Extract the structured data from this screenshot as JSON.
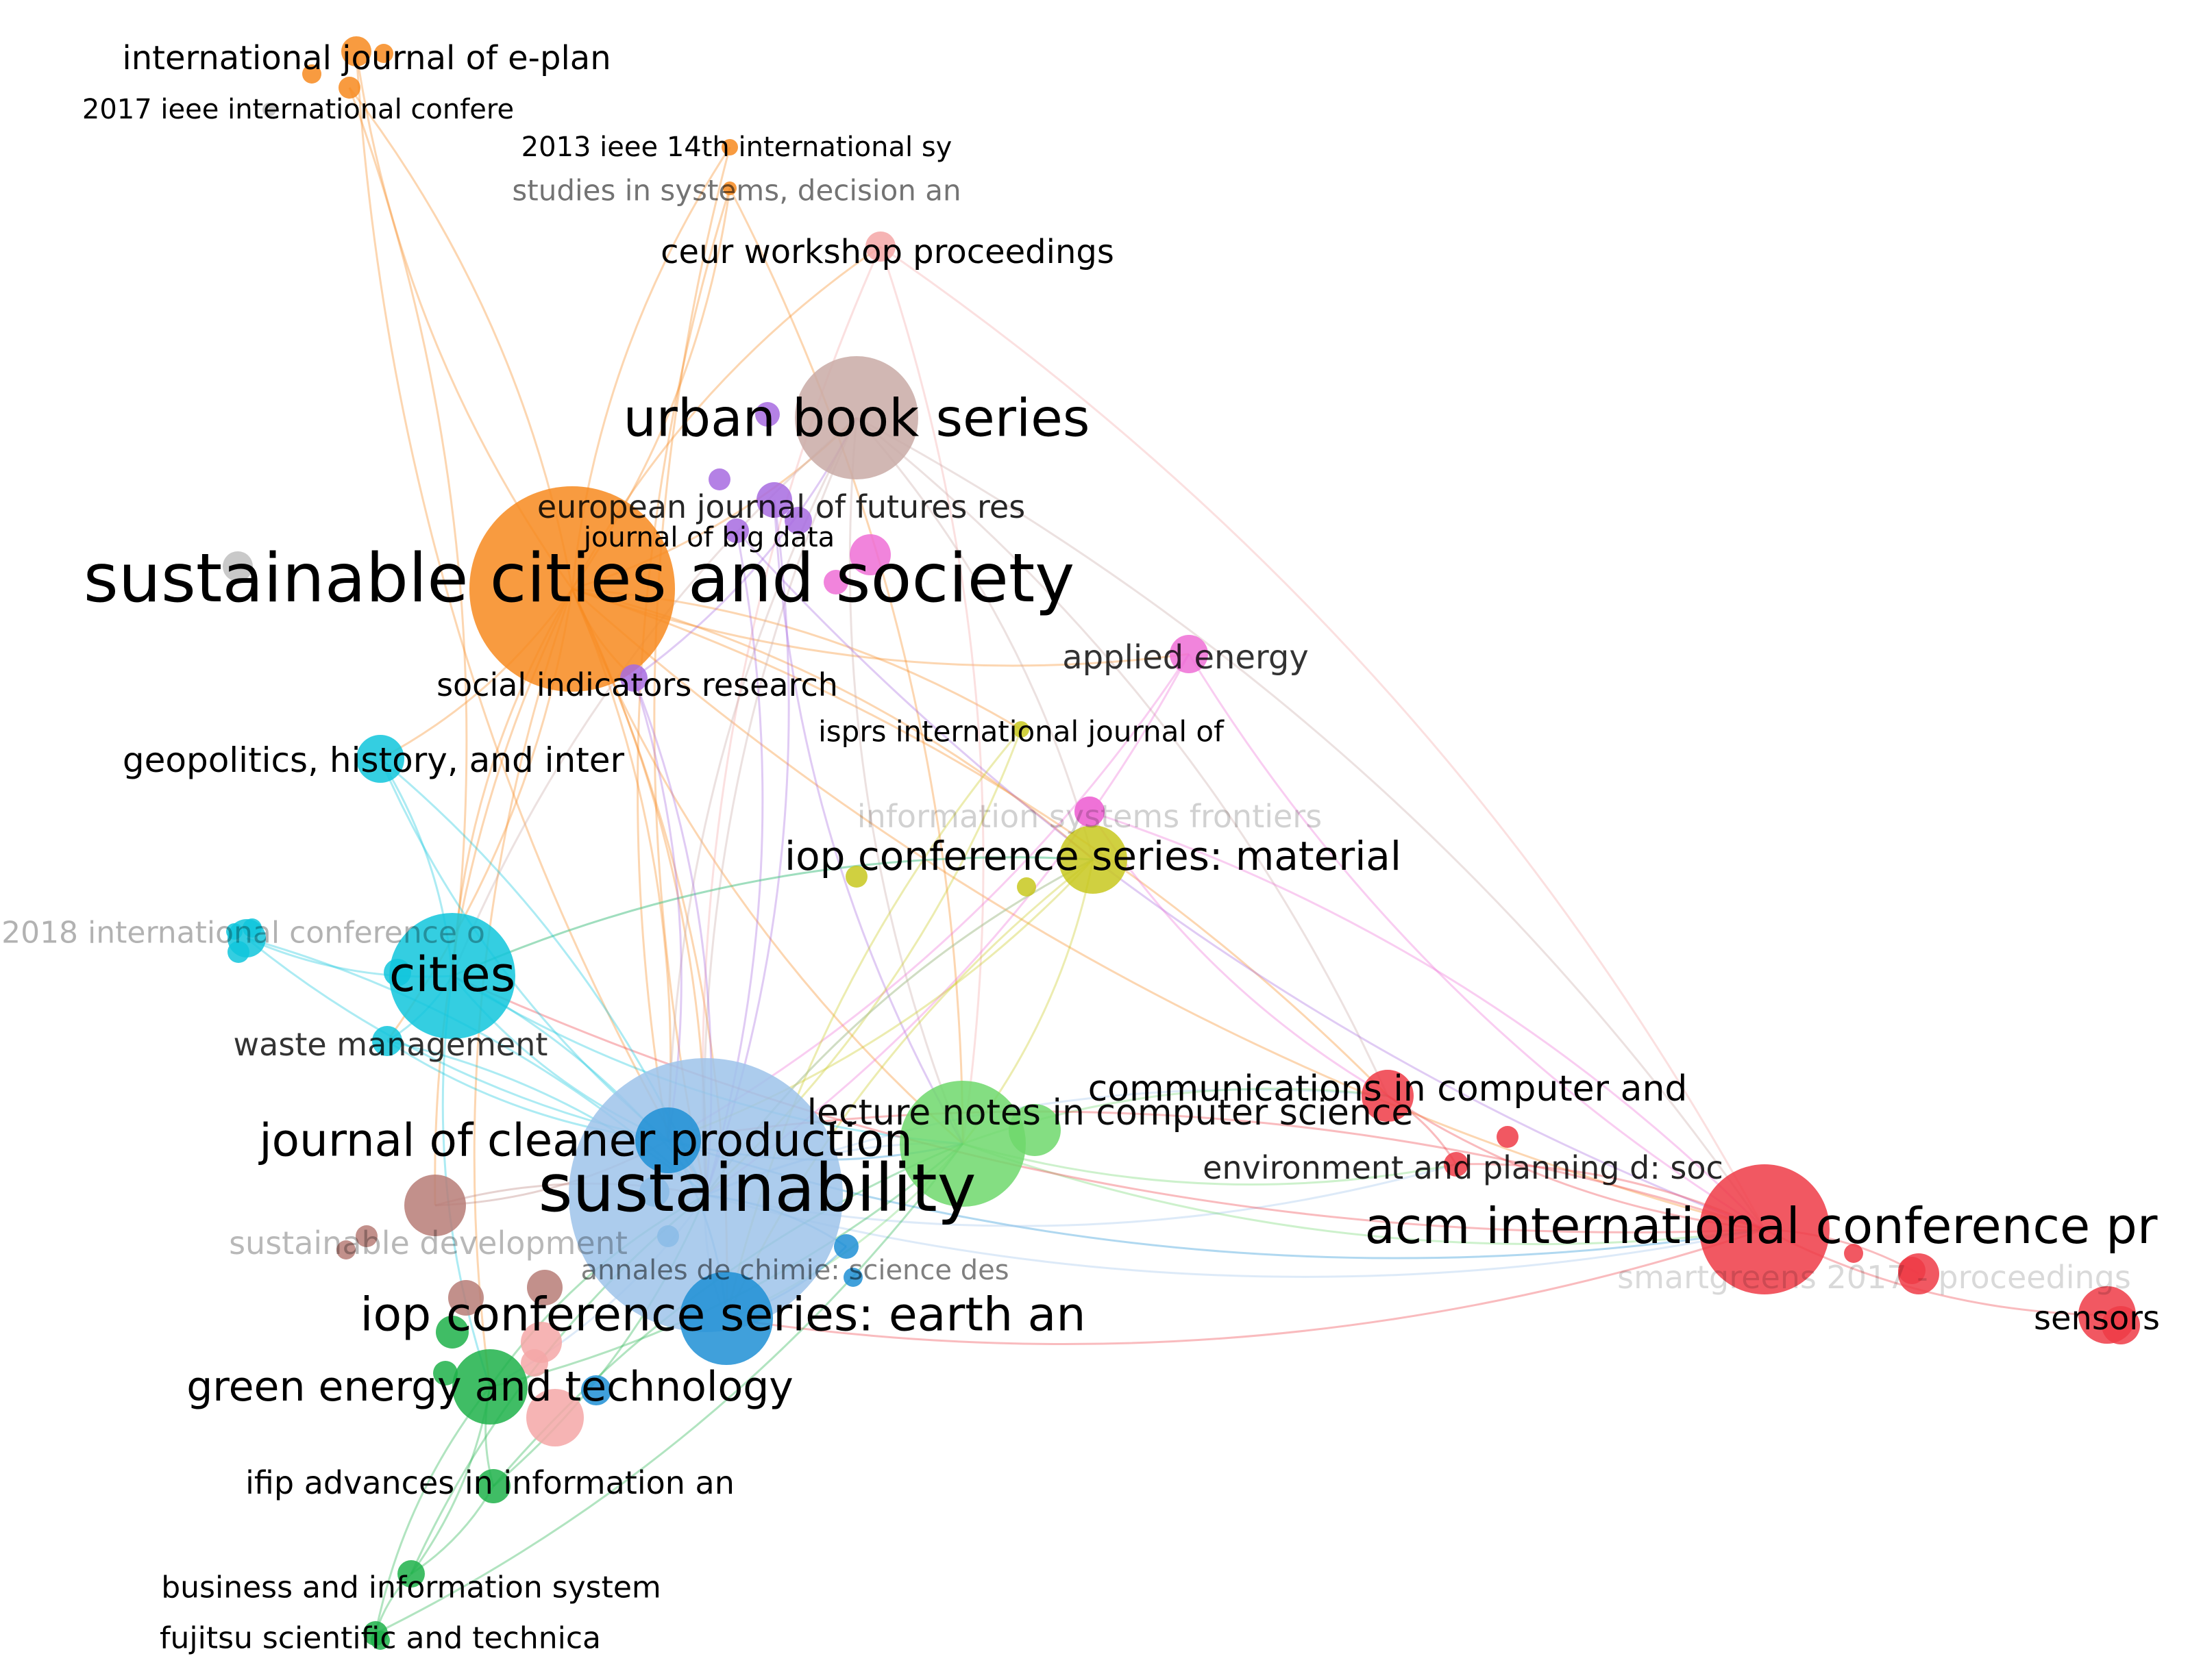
{
  "diagram": {
    "type": "bibliometric-source-network",
    "clusters": {
      "orange": "#f7891f",
      "red": "#ef3b46",
      "green": "#1fb24a",
      "light_green": "#6fd86c",
      "blue": "#1e8fd5",
      "light_blue": "#9ec3ea",
      "cyan": "#10c6dc",
      "yellow": "#c8c81e",
      "purple": "#a76be0",
      "pink": "#ef6fd6",
      "light_pink": "#f4a7a7",
      "brown": "#b77d77",
      "mauve": "#c9aaa6",
      "grey": "#c0c0c0"
    },
    "nodes": [
      {
        "id": "scs",
        "label": "sustainable cities and society",
        "cluster": "orange"
      },
      {
        "id": "ije",
        "label": "international journal of e-plan",
        "cluster": "orange"
      },
      {
        "id": "ieee17",
        "label": "2017 ieee international confere",
        "cluster": "orange"
      },
      {
        "id": "ieee13",
        "label": "2013 ieee 14th international sy",
        "cluster": "orange"
      },
      {
        "id": "studies",
        "label": "studies in systems, decision an",
        "cluster": "orange"
      },
      {
        "id": "ceur",
        "label": "ceur workshop proceedings",
        "cluster": "light_pink"
      },
      {
        "id": "urban",
        "label": "urban book series",
        "cluster": "mauve"
      },
      {
        "id": "ejfr",
        "label": "european journal of futures res",
        "cluster": "purple"
      },
      {
        "id": "bigdata",
        "label": "journal of big data",
        "cluster": "purple"
      },
      {
        "id": "social",
        "label": "social indicators research",
        "cluster": "purple"
      },
      {
        "id": "applied",
        "label": "applied energy",
        "cluster": "pink"
      },
      {
        "id": "isprs",
        "label": "isprs international journal of",
        "cluster": "yellow"
      },
      {
        "id": "isf",
        "label": "information systems frontiers",
        "cluster": "pink"
      },
      {
        "id": "iopmat",
        "label": "iop conference series: material",
        "cluster": "yellow"
      },
      {
        "id": "geopol",
        "label": "geopolitics, history, and inter",
        "cluster": "cyan"
      },
      {
        "id": "conf2018",
        "label": "2018 international conference o",
        "cluster": "cyan"
      },
      {
        "id": "cities",
        "label": "cities",
        "cluster": "cyan"
      },
      {
        "id": "waste",
        "label": "waste management",
        "cluster": "cyan"
      },
      {
        "id": "jcp",
        "label": "journal of cleaner production",
        "cluster": "blue"
      },
      {
        "id": "sust",
        "label": "sustainability",
        "cluster": "light_blue"
      },
      {
        "id": "lncs",
        "label": "lecture notes in computer science",
        "cluster": "light_green"
      },
      {
        "id": "ccis",
        "label": "communications in computer and",
        "cluster": "red"
      },
      {
        "id": "epd",
        "label": "environment and planning d: soc",
        "cluster": "red"
      },
      {
        "id": "acm",
        "label": "acm international conference pr",
        "cluster": "red"
      },
      {
        "id": "smartgreens",
        "label": "smartgreens 2017 - proceedings",
        "cluster": "red"
      },
      {
        "id": "sensors",
        "label": "sensors",
        "cluster": "red"
      },
      {
        "id": "sdev",
        "label": "sustainable development",
        "cluster": "brown"
      },
      {
        "id": "annales",
        "label": "annales de chimie: science des",
        "cluster": "blue"
      },
      {
        "id": "iopearth",
        "label": "iop conference series: earth an",
        "cluster": "blue"
      },
      {
        "id": "greenet",
        "label": "green energy and technology",
        "cluster": "green"
      },
      {
        "id": "ifip",
        "label": "ifip advances in information an",
        "cluster": "green"
      },
      {
        "id": "bis",
        "label": "business and information system",
        "cluster": "green"
      },
      {
        "id": "fujitsu",
        "label": "fujitsu scientific and technica",
        "cluster": "green"
      }
    ]
  }
}
